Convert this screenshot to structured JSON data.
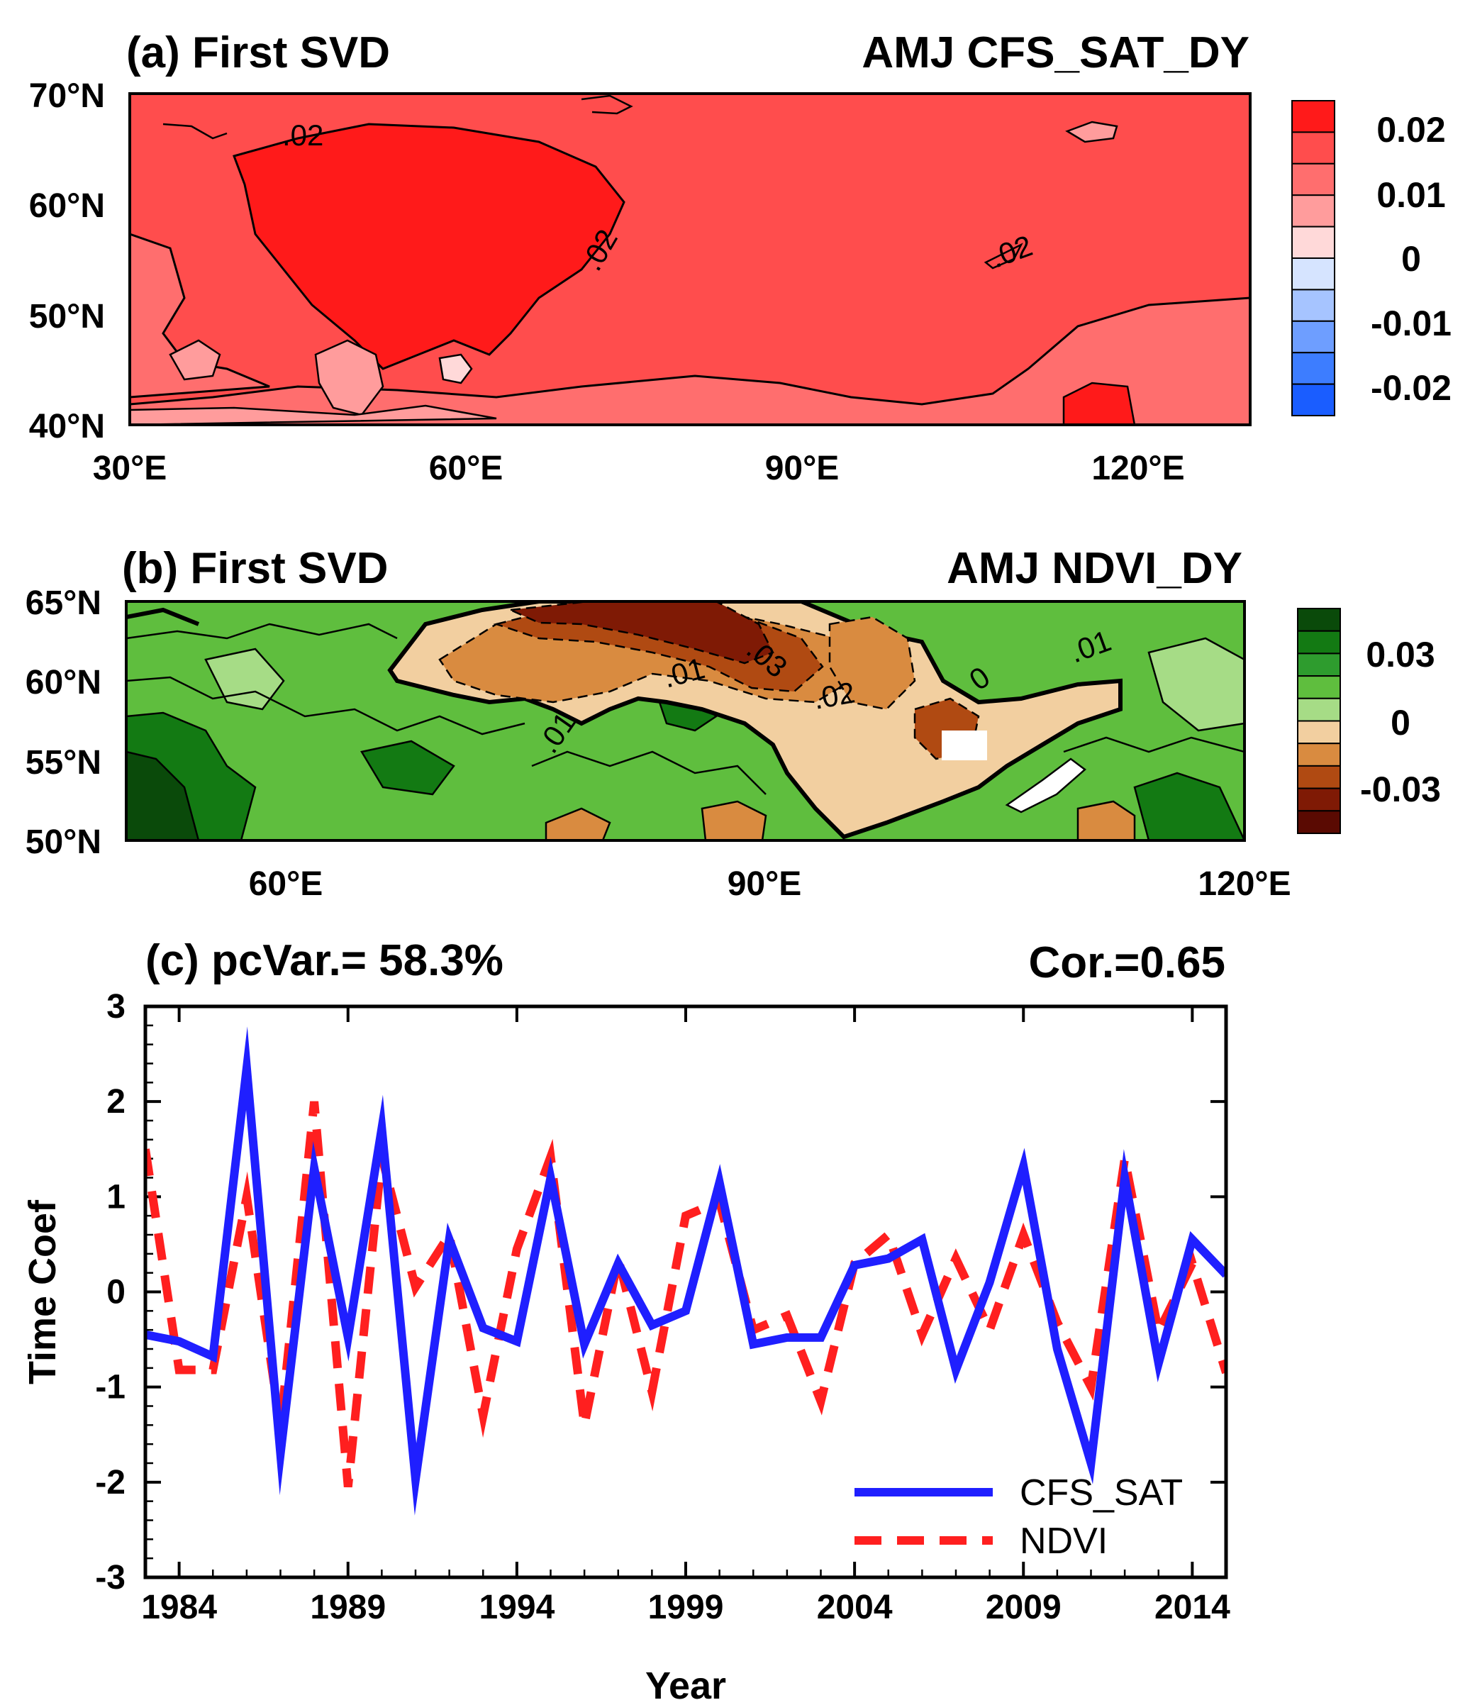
{
  "panel_a": {
    "title_left": "(a) First SVD",
    "title_right": "AMJ CFS_SAT_DY",
    "y_ticks": [
      "70°N",
      "60°N",
      "50°N",
      "40°N"
    ],
    "x_ticks": [
      "30°E",
      "60°E",
      "90°E",
      "120°E"
    ],
    "contour_labels": [
      ".02",
      ".02",
      ".02"
    ],
    "colorbar": {
      "labels": [
        "0.02",
        "0.01",
        "0",
        "-0.01",
        "-0.02"
      ],
      "colors": [
        "#ff1a1a",
        "#ff4d4d",
        "#ff6e6e",
        "#ff9c9c",
        "#ffd9d9",
        "#d6e4ff",
        "#a6c4ff",
        "#6e9eff",
        "#3d7dff",
        "#1a5dff"
      ]
    }
  },
  "panel_b": {
    "title_left": "(b) First SVD",
    "title_right": "AMJ NDVI_DY",
    "y_ticks": [
      "65°N",
      "60°N",
      "55°N",
      "50°N"
    ],
    "x_ticks": [
      "60°E",
      "90°E",
      "120°E"
    ],
    "contour_labels": [
      ".03",
      ".02",
      ".01",
      "0",
      ".01",
      ".01"
    ],
    "colorbar": {
      "labels": [
        "0.03",
        "0",
        "-0.03"
      ],
      "colors": [
        "#0a4a0a",
        "#137a13",
        "#2e9c2e",
        "#5fbe3e",
        "#a6dc86",
        "#f2cfa0",
        "#d98b40",
        "#b04a12",
        "#7f1a05",
        "#5a0a02"
      ]
    }
  },
  "panel_c": {
    "title_left": "(c) pcVar.= 58.3%",
    "title_right": "Cor.=0.65",
    "xlabel": "Year",
    "ylabel": "Time Coef",
    "legend": [
      "CFS_SAT",
      "NDVI"
    ]
  },
  "chart_data": {
    "type": "line",
    "x": [
      1983,
      1984,
      1985,
      1986,
      1987,
      1988,
      1989,
      1990,
      1991,
      1992,
      1993,
      1994,
      1995,
      1996,
      1997,
      1998,
      1999,
      2000,
      2001,
      2002,
      2003,
      2004,
      2005,
      2006,
      2007,
      2008,
      2009,
      2010,
      2011,
      2012,
      2013,
      2014,
      2015
    ],
    "xlim": [
      1983,
      2015
    ],
    "ylim": [
      -3,
      3
    ],
    "x_tick_labels": [
      "1984",
      "1989",
      "1994",
      "1999",
      "2004",
      "2009",
      "2014"
    ],
    "y_tick_labels": [
      "3",
      "2",
      "1",
      "0",
      "-1",
      "-2",
      "-3"
    ],
    "series": [
      {
        "name": "CFS_SAT",
        "color": "#1f1fff",
        "style": "solid",
        "values": [
          -0.45,
          -0.52,
          -0.68,
          2.35,
          -1.7,
          1.3,
          -0.48,
          1.72,
          -1.97,
          0.55,
          -0.38,
          -0.52,
          1.2,
          -0.55,
          0.3,
          -0.35,
          -0.2,
          1.15,
          -0.55,
          -0.48,
          -0.48,
          0.28,
          0.35,
          0.55,
          -0.82,
          0.1,
          1.32,
          -0.6,
          -1.8,
          1.2,
          -0.75,
          0.55,
          0.18
        ]
      },
      {
        "name": "NDVI",
        "color": "#ff1f1f",
        "style": "dashed",
        "values": [
          1.5,
          -0.82,
          -0.82,
          1.0,
          -1.42,
          2.0,
          -2.05,
          1.42,
          0.05,
          0.6,
          -1.3,
          0.45,
          1.42,
          -1.4,
          0.35,
          -1.05,
          0.8,
          0.95,
          -0.4,
          -0.25,
          -1.15,
          0.3,
          0.6,
          -0.45,
          0.35,
          -0.4,
          0.6,
          -0.32,
          -1.0,
          1.4,
          -0.42,
          0.3,
          -0.85
        ]
      }
    ]
  }
}
